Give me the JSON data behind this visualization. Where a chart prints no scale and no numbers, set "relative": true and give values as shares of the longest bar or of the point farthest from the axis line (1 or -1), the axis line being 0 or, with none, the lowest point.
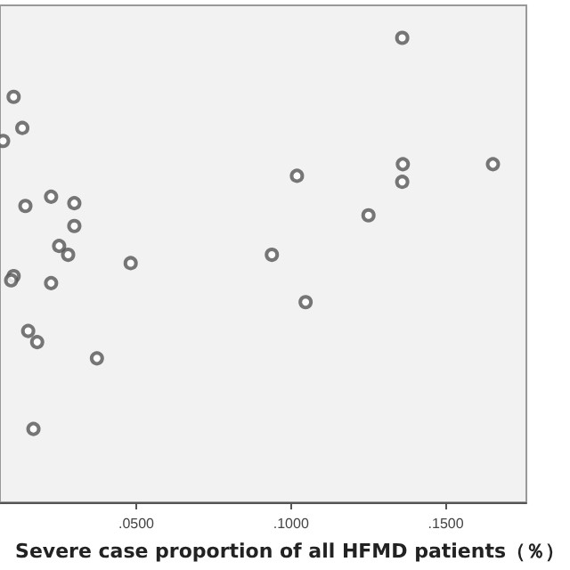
{
  "chart_data": {
    "type": "scatter",
    "xlabel": "Severe case proportion of all HFMD patients（％）",
    "relative": true,
    "marker": "circle",
    "color": "#555555",
    "xlim": [
      0.006,
      0.176
    ],
    "xticks": [
      {
        "value": 0.05,
        "label": ".0500"
      },
      {
        "value": 0.1,
        "label": ".1000"
      },
      {
        "value": 0.15,
        "label": ".1500"
      }
    ],
    "x": [
      0.0104,
      0.0132,
      0.007,
      0.0142,
      0.0225,
      0.03,
      0.03,
      0.0251,
      0.028,
      0.0482,
      0.0104,
      0.0096,
      0.0225,
      0.0151,
      0.018,
      0.0373,
      0.0168,
      0.1359,
      0.1019,
      0.1361,
      0.1359,
      0.1652,
      0.125,
      0.0938,
      0.1047
    ],
    "values": [
      0.873,
      0.806,
      0.778,
      0.638,
      0.658,
      0.644,
      0.595,
      0.552,
      0.533,
      0.515,
      0.487,
      0.478,
      0.472,
      0.369,
      0.345,
      0.31,
      0.158,
      1.0,
      0.703,
      0.728,
      0.69,
      0.728,
      0.618,
      0.533,
      0.431
    ]
  }
}
